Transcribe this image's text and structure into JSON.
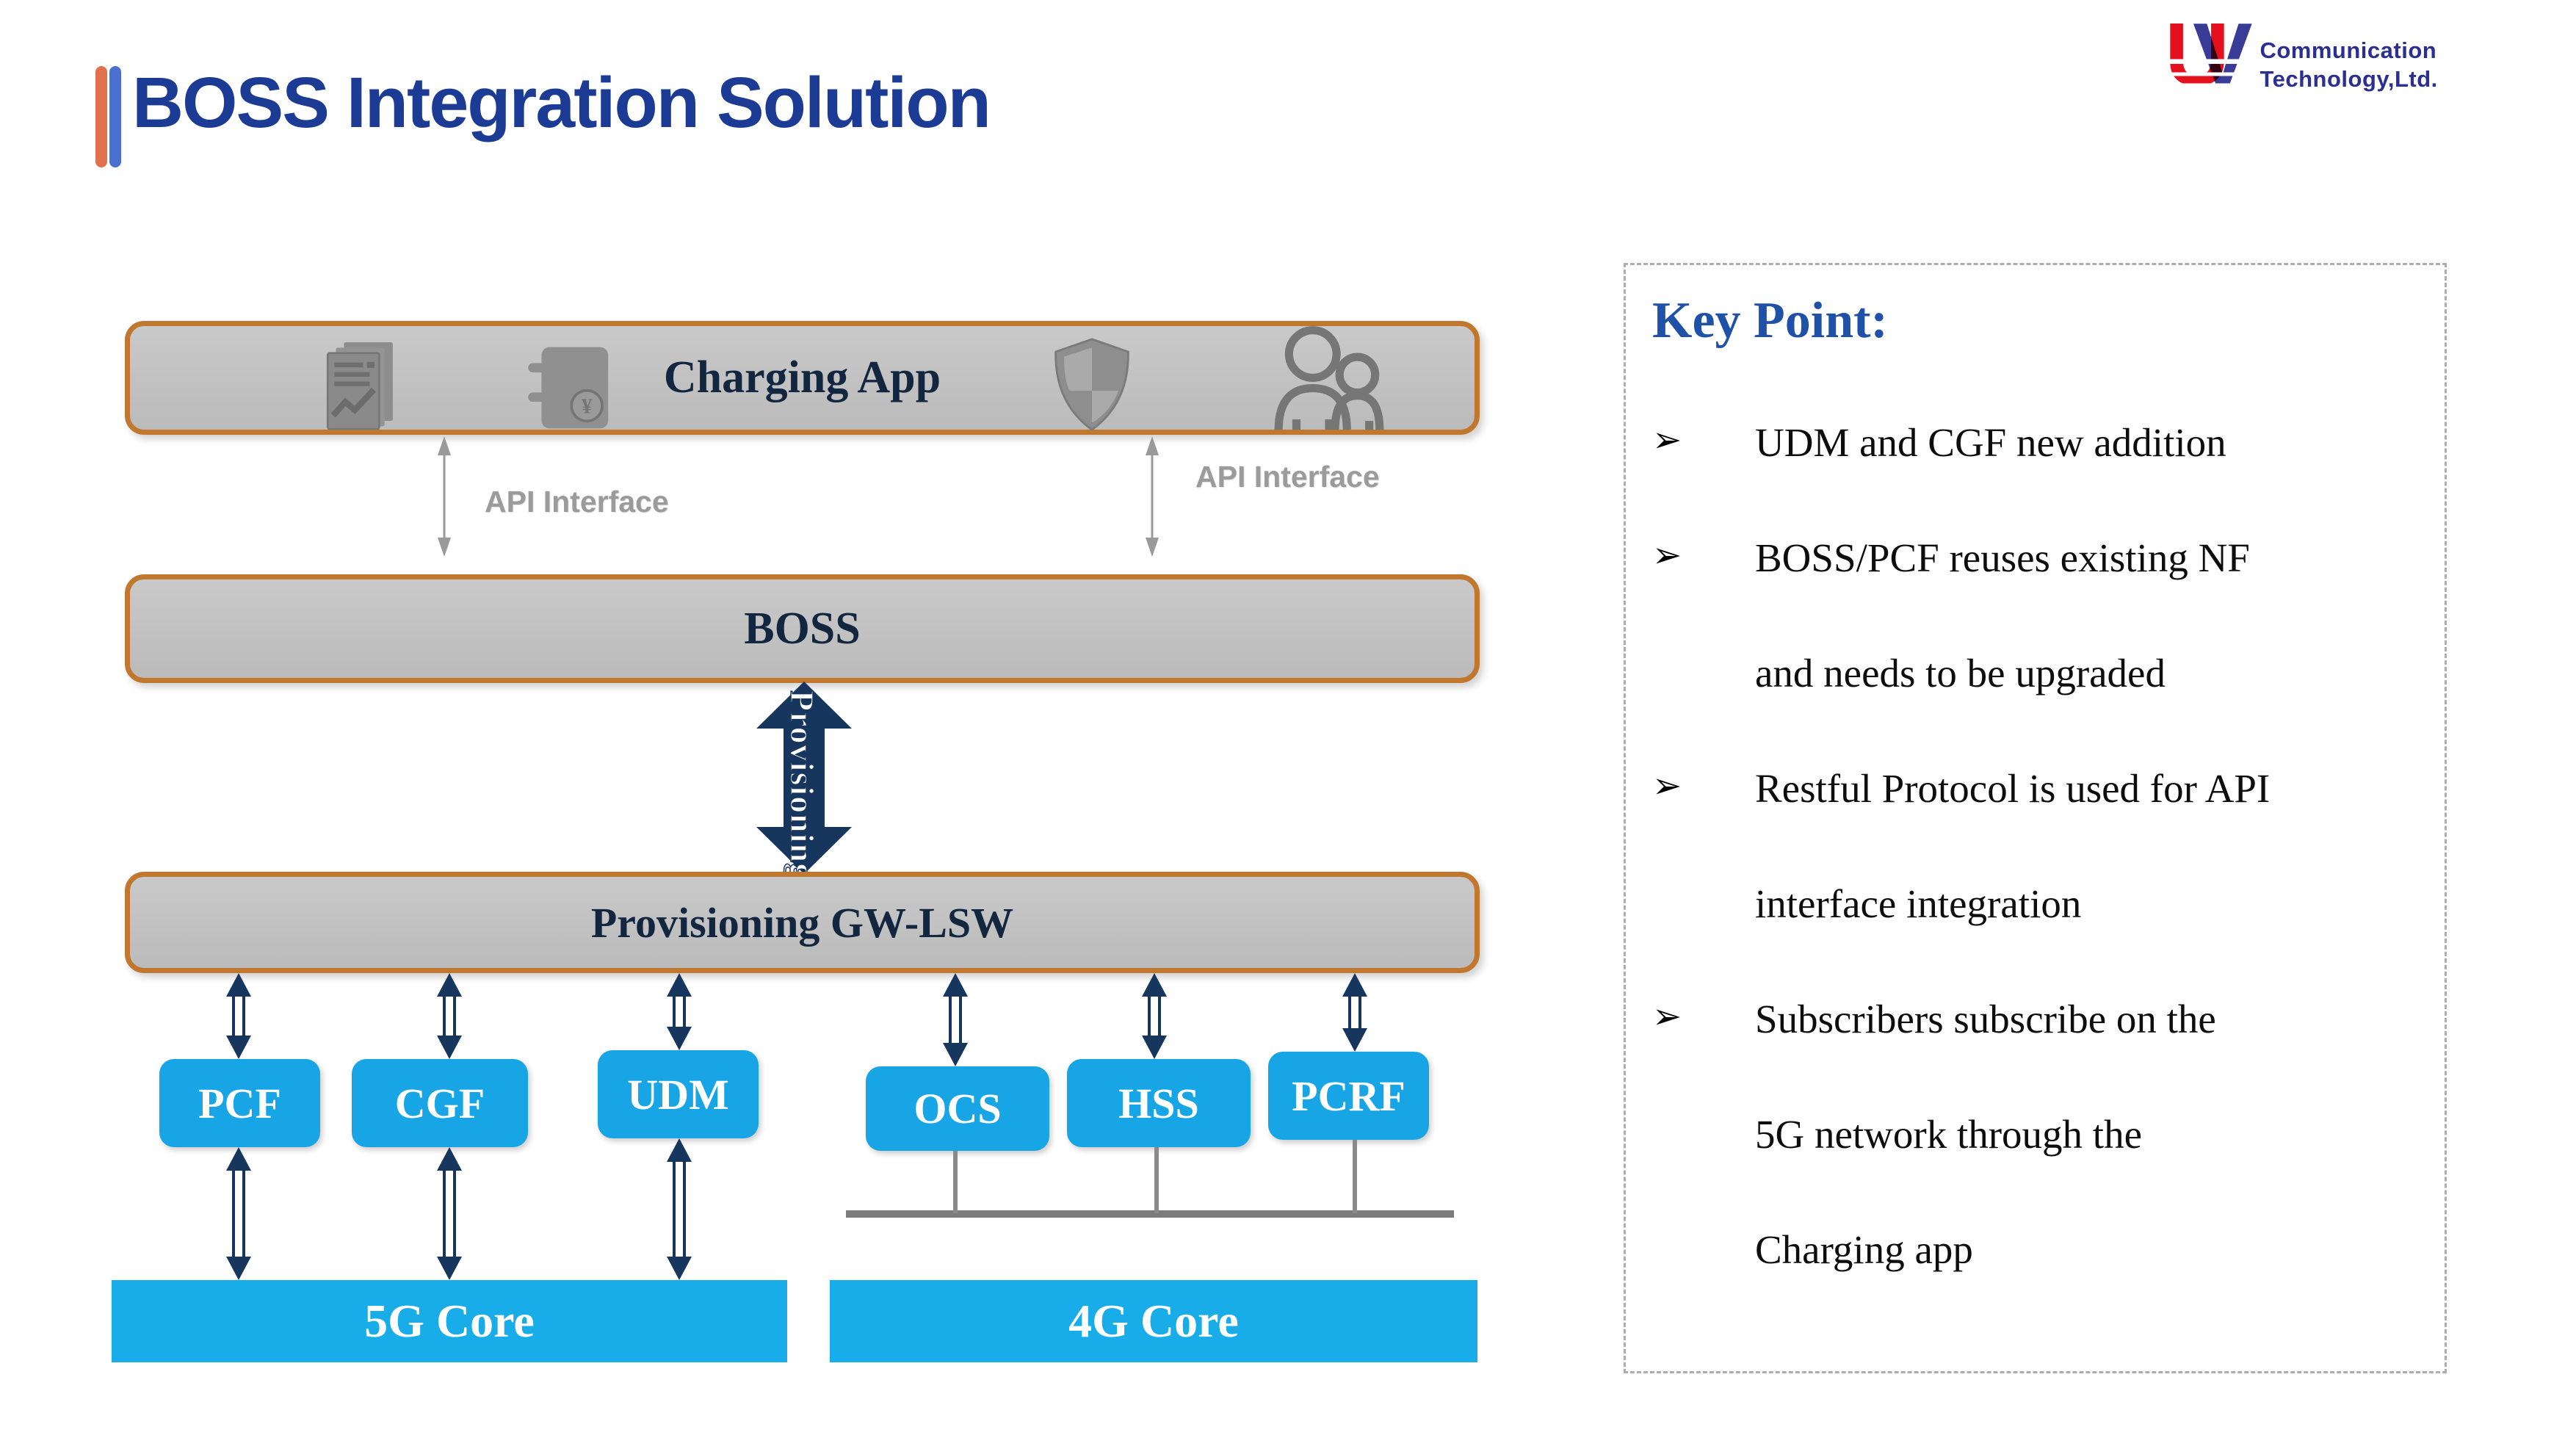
{
  "slide": {
    "title": "BOSS Integration Solution"
  },
  "logo": {
    "letter_u": "U",
    "letter_v": "V",
    "line1": "Communication",
    "line2": "Technology,Ltd."
  },
  "diagram": {
    "charging_app_label": "Charging App",
    "api_interface_left": "API Interface",
    "api_interface_right": "API Interface",
    "boss_label": "BOSS",
    "provisioning_arrow_label": "Provisioning",
    "gw_label": "Provisioning GW-LSW",
    "nf_boxes": [
      "PCF",
      "CGF",
      "UDM",
      "OCS",
      "HSS",
      "PCRF"
    ],
    "core_5g_label": "5G Core",
    "core_4g_label": "4G Core"
  },
  "key_point": {
    "title": "Key Point:",
    "bullet_glyph": "➢",
    "bullets": [
      {
        "bullet": true,
        "text": "UDM and CGF new addition"
      },
      {
        "bullet": true,
        "text": "BOSS/PCF reuses existing NF"
      },
      {
        "bullet": false,
        "text": "and needs to be upgraded"
      },
      {
        "bullet": true,
        "text": "Restful Protocol is used for API"
      },
      {
        "bullet": false,
        "text": "interface integration"
      },
      {
        "bullet": true,
        "text": "Subscribers subscribe on the"
      },
      {
        "bullet": false,
        "text": "5G network through the"
      },
      {
        "bullet": false,
        "text": "Charging app"
      }
    ]
  },
  "colors": {
    "accent_orange": "#C2772E",
    "box_gray": "#C1C1C1",
    "navy": "#17365D",
    "nf_blue": "#17A5E5",
    "core_blue": "#18ACE9",
    "title_blue": "#1B3B94",
    "keypoint_blue": "#2051A8",
    "logo_red": "#E5101E",
    "logo_blue": "#383C97",
    "label_gray": "#9B9B9B"
  }
}
